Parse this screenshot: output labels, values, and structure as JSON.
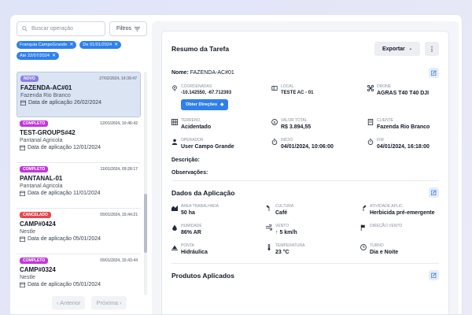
{
  "search": {
    "placeholder": "Buscar operação"
  },
  "filters_label": "Filtros",
  "chips": [
    "Franquia CampoGrande",
    "De 01/01/2024",
    "Até 22/07/2024"
  ],
  "cards": [
    {
      "status": "NOVO",
      "status_color": "#8a7fe8",
      "date": "27/02/2024, 14:39:47",
      "code": "FAZENDA-AC#01",
      "farm": "Fazenda Rio Branco",
      "app_date": "Data de aplicação 26/02/2024"
    },
    {
      "status": "COMPLETO",
      "status_color": "#c236d9",
      "date": "12/01/2024, 10:46:42",
      "code": "TEST-GROUPS#42",
      "farm": "Pantanal Agricola",
      "app_date": "Data de aplicação 12/01/2024"
    },
    {
      "status": "COMPLETO",
      "status_color": "#c236d9",
      "date": "11/01/2024, 09:28:17",
      "code": "PANTANAL-01",
      "farm": "Pantanal Agricola",
      "app_date": "Data de aplicação 11/01/2024"
    },
    {
      "status": "CANCELADO",
      "status_color": "#e5484d",
      "date": "05/01/2024, 15:44:21",
      "code": "CAMP#0424",
      "farm": "Nestle",
      "app_date": "Data de aplicação 05/01/2024"
    },
    {
      "status": "COMPLETO",
      "status_color": "#c236d9",
      "date": "05/01/2024, 15:43:44",
      "code": "CAMP#0324",
      "farm": "Nestle",
      "app_date": "Data de aplicação 05/01/2024"
    }
  ],
  "pager": {
    "prev": "‹ Anterior",
    "next": "Próxima ›"
  },
  "summary": {
    "title": "Resumo da Tarefa",
    "export_label": "Exportar",
    "more_label": "⋮",
    "name_label": "Nome:",
    "name_value": "FAZENDA-AC#01",
    "coords_label": "COORDENADAS",
    "coords_value": "-10.142550, -67.712393",
    "local_label": "LOCAL",
    "local_value": "TESTE AC - 01",
    "drone_label": "DRONE",
    "drone_value": "AGRAS T40 T40 DJI",
    "directions_label": "Obter Direções",
    "terreno_label": "TERRENO",
    "terreno_value": "Acidentado",
    "valor_label": "VALOR TOTAL",
    "valor_value": "R$ 3.894,55",
    "cliente_label": "CLIENTE",
    "cliente_value": "Fazenda Rio Branco",
    "operador_label": "OPERADOR",
    "operador_value": "User Campo Grande",
    "inicio_label": "INÍCIO",
    "inicio_value": "04/01/2024, 10:06:00",
    "fim_label": "FIM",
    "fim_value": "04/01/2024, 16:18:00",
    "descricao_label": "Descrição:",
    "observacoes_label": "Observações:"
  },
  "application": {
    "title": "Dados da Aplicação",
    "area_label": "ÁREA TRABALHADA",
    "area_value": "50 ha",
    "cultura_label": "CULTURA",
    "cultura_value": "Café",
    "atividade_label": "ATIVIDADE APLIC.",
    "atividade_value": "Herbicida pré-emergente",
    "umidade_label": "HUMIDADE",
    "umidade_value": "86% AR",
    "vento_label": "VENTO",
    "vento_value": "5 km/h",
    "direcao_label": "DIREÇÃO VENTO",
    "ponta_label": "PONTA",
    "ponta_value": "Hidráulica",
    "temperatura_label": "TEMPERATURA",
    "temperatura_value": "23 °C",
    "turno_label": "TURNO",
    "turno_value": "Dia e Noite"
  },
  "products": {
    "title": "Produtos Aplicados"
  }
}
